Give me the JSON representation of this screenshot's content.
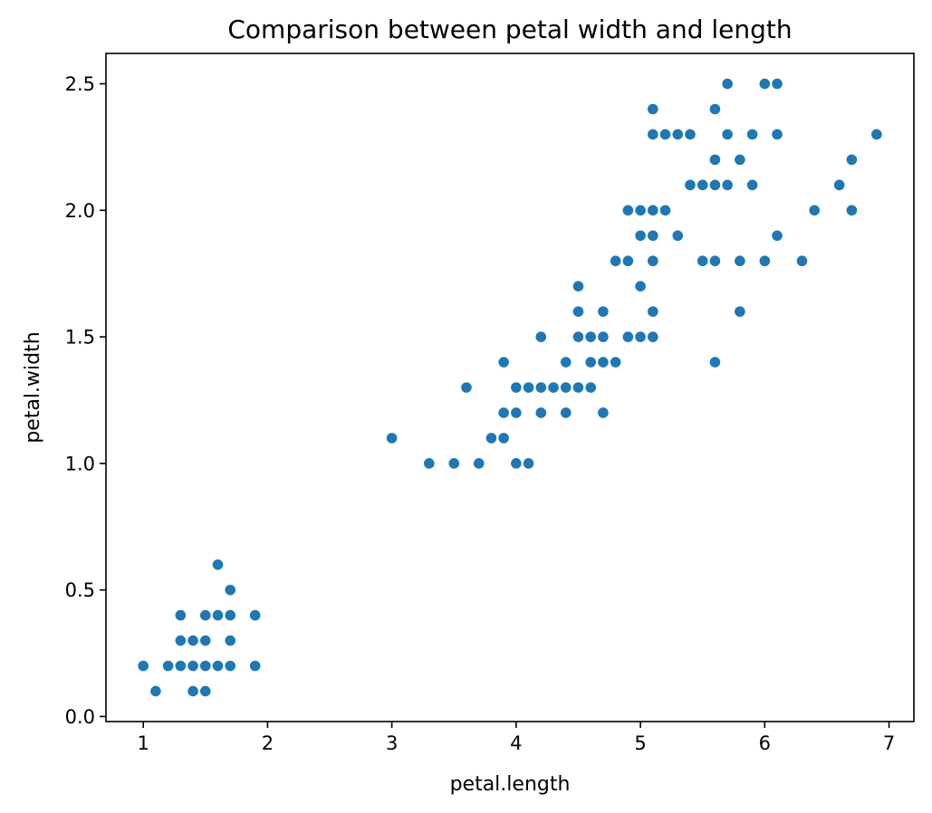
{
  "chart_data": {
    "type": "scatter",
    "title": "Comparison between petal width and length",
    "xlabel": "petal.length",
    "ylabel": "petal.width",
    "xlim": [
      0.7,
      7.2
    ],
    "ylim": [
      -0.02,
      2.62
    ],
    "x_ticks": [
      1,
      2,
      3,
      4,
      5,
      6,
      7
    ],
    "x_tick_labels": [
      "1",
      "2",
      "3",
      "4",
      "5",
      "6",
      "7"
    ],
    "y_ticks": [
      0.0,
      0.5,
      1.0,
      1.5,
      2.0,
      2.5
    ],
    "y_tick_labels": [
      "0.0",
      "0.5",
      "1.0",
      "1.5",
      "2.0",
      "2.5"
    ],
    "grid": false,
    "marker_color": "#1f77b4",
    "points": [
      [
        1.0,
        0.2
      ],
      [
        1.1,
        0.1
      ],
      [
        1.2,
        0.2
      ],
      [
        1.3,
        0.2
      ],
      [
        1.3,
        0.3
      ],
      [
        1.3,
        0.4
      ],
      [
        1.4,
        0.1
      ],
      [
        1.4,
        0.2
      ],
      [
        1.4,
        0.3
      ],
      [
        1.5,
        0.1
      ],
      [
        1.5,
        0.2
      ],
      [
        1.5,
        0.3
      ],
      [
        1.5,
        0.4
      ],
      [
        1.6,
        0.2
      ],
      [
        1.6,
        0.4
      ],
      [
        1.6,
        0.6
      ],
      [
        1.7,
        0.2
      ],
      [
        1.7,
        0.3
      ],
      [
        1.7,
        0.4
      ],
      [
        1.7,
        0.5
      ],
      [
        1.9,
        0.2
      ],
      [
        1.9,
        0.4
      ],
      [
        3.0,
        1.1
      ],
      [
        3.3,
        1.0
      ],
      [
        3.5,
        1.0
      ],
      [
        3.6,
        1.3
      ],
      [
        3.7,
        1.0
      ],
      [
        3.8,
        1.1
      ],
      [
        3.9,
        1.1
      ],
      [
        3.9,
        1.2
      ],
      [
        3.9,
        1.4
      ],
      [
        4.0,
        1.0
      ],
      [
        4.0,
        1.2
      ],
      [
        4.0,
        1.3
      ],
      [
        4.1,
        1.0
      ],
      [
        4.1,
        1.3
      ],
      [
        4.2,
        1.2
      ],
      [
        4.2,
        1.3
      ],
      [
        4.2,
        1.5
      ],
      [
        4.3,
        1.3
      ],
      [
        4.4,
        1.2
      ],
      [
        4.4,
        1.3
      ],
      [
        4.4,
        1.4
      ],
      [
        4.5,
        1.3
      ],
      [
        4.5,
        1.5
      ],
      [
        4.5,
        1.6
      ],
      [
        4.5,
        1.7
      ],
      [
        4.6,
        1.3
      ],
      [
        4.6,
        1.4
      ],
      [
        4.6,
        1.5
      ],
      [
        4.7,
        1.2
      ],
      [
        4.7,
        1.4
      ],
      [
        4.7,
        1.5
      ],
      [
        4.7,
        1.6
      ],
      [
        4.8,
        1.4
      ],
      [
        4.8,
        1.8
      ],
      [
        4.9,
        1.5
      ],
      [
        4.9,
        1.8
      ],
      [
        4.9,
        2.0
      ],
      [
        5.0,
        1.5
      ],
      [
        5.0,
        1.7
      ],
      [
        5.0,
        1.9
      ],
      [
        5.0,
        2.0
      ],
      [
        5.1,
        1.5
      ],
      [
        5.1,
        1.6
      ],
      [
        5.1,
        1.8
      ],
      [
        5.1,
        1.9
      ],
      [
        5.1,
        2.0
      ],
      [
        5.1,
        2.3
      ],
      [
        5.1,
        2.4
      ],
      [
        5.2,
        2.0
      ],
      [
        5.2,
        2.3
      ],
      [
        5.3,
        1.9
      ],
      [
        5.3,
        2.3
      ],
      [
        5.4,
        2.1
      ],
      [
        5.4,
        2.3
      ],
      [
        5.5,
        1.8
      ],
      [
        5.5,
        2.1
      ],
      [
        5.6,
        1.4
      ],
      [
        5.6,
        1.8
      ],
      [
        5.6,
        2.1
      ],
      [
        5.6,
        2.2
      ],
      [
        5.6,
        2.4
      ],
      [
        5.7,
        2.1
      ],
      [
        5.7,
        2.3
      ],
      [
        5.7,
        2.5
      ],
      [
        5.8,
        1.6
      ],
      [
        5.8,
        1.8
      ],
      [
        5.8,
        2.2
      ],
      [
        5.9,
        2.1
      ],
      [
        5.9,
        2.3
      ],
      [
        6.0,
        1.8
      ],
      [
        6.0,
        2.5
      ],
      [
        6.1,
        1.9
      ],
      [
        6.1,
        2.3
      ],
      [
        6.1,
        2.5
      ],
      [
        6.3,
        1.8
      ],
      [
        6.4,
        2.0
      ],
      [
        6.6,
        2.1
      ],
      [
        6.7,
        2.0
      ],
      [
        6.7,
        2.2
      ],
      [
        6.9,
        2.3
      ]
    ]
  }
}
